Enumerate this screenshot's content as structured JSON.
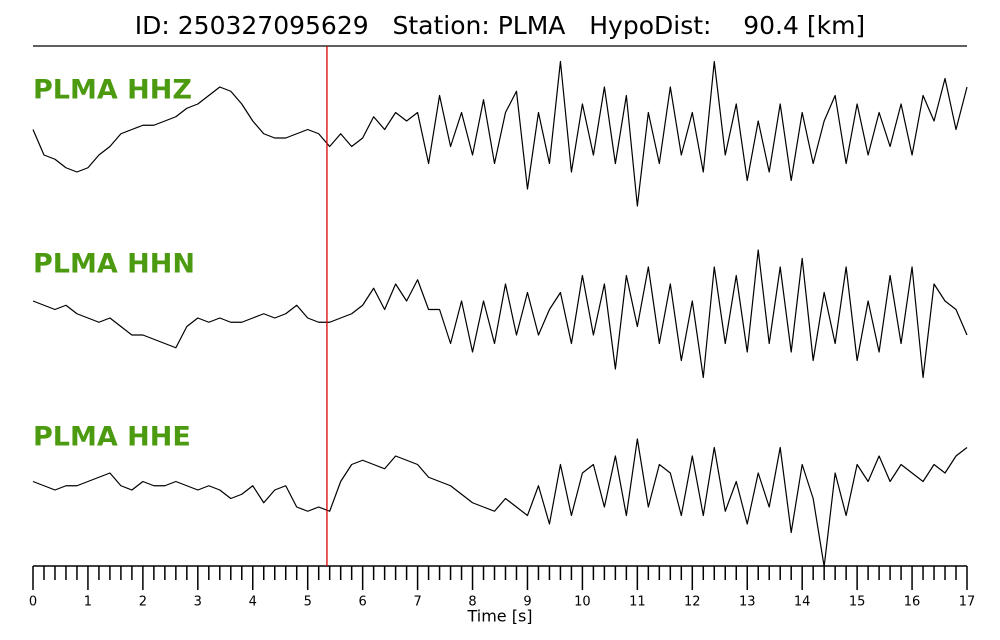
{
  "chart_data": {
    "type": "line",
    "title": "ID: 250327095629   Station: PLMA   HypoDist:    90.4 [km]",
    "xlabel": "Time [s]",
    "x": [
      0,
      0.2,
      0.4,
      0.6,
      0.8,
      1,
      1.2,
      1.4,
      1.6,
      1.8,
      2,
      2.2,
      2.4,
      2.6,
      2.8,
      3,
      3.2,
      3.4,
      3.6,
      3.8,
      4,
      4.2,
      4.4,
      4.6,
      4.8,
      5,
      5.2,
      5.4,
      5.6,
      5.8,
      6,
      6.2,
      6.4,
      6.6,
      6.8,
      7,
      7.2,
      7.4,
      7.6,
      7.8,
      8,
      8.2,
      8.4,
      8.6,
      8.8,
      9,
      9.2,
      9.4,
      9.6,
      9.8,
      10,
      10.2,
      10.4,
      10.6,
      10.8,
      11,
      11.2,
      11.4,
      11.6,
      11.8,
      12,
      12.2,
      12.4,
      12.6,
      12.8,
      13,
      13.2,
      13.4,
      13.6,
      13.8,
      14,
      14.2,
      14.4,
      14.6,
      14.8,
      15,
      15.2,
      15.4,
      15.6,
      15.8,
      16,
      16.2,
      16.4,
      16.6,
      16.8,
      17
    ],
    "series": [
      {
        "name": "PLMA HHZ",
        "color": "#000000",
        "values": [
          0.1,
          -0.2,
          -0.25,
          -0.35,
          -0.4,
          -0.35,
          -0.2,
          -0.1,
          0.05,
          0.1,
          0.15,
          0.15,
          0.2,
          0.25,
          0.35,
          0.4,
          0.5,
          0.6,
          0.55,
          0.4,
          0.2,
          0.05,
          0,
          0,
          0.05,
          0.1,
          0.05,
          -0.1,
          0.05,
          -0.1,
          0,
          0.25,
          0.1,
          0.3,
          0.2,
          0.3,
          -0.3,
          0.5,
          -0.1,
          0.3,
          -0.2,
          0.45,
          -0.3,
          0.3,
          0.55,
          -0.6,
          0.3,
          -0.3,
          0.9,
          -0.4,
          0.4,
          -0.2,
          0.6,
          -0.3,
          0.5,
          -0.8,
          0.3,
          -0.3,
          0.6,
          -0.2,
          0.3,
          -0.4,
          0.9,
          -0.2,
          0.4,
          -0.5,
          0.2,
          -0.4,
          0.4,
          -0.5,
          0.3,
          -0.3,
          0.2,
          0.5,
          -0.3,
          0.4,
          -0.2,
          0.3,
          -0.1,
          0.4,
          -0.2,
          0.5,
          0.2,
          0.7,
          0.1,
          0.6
        ]
      },
      {
        "name": "PLMA HHN",
        "color": "#000000",
        "values": [
          0.2,
          0.15,
          0.1,
          0.15,
          0.05,
          0,
          -0.05,
          0,
          -0.1,
          -0.2,
          -0.2,
          -0.25,
          -0.3,
          -0.35,
          -0.1,
          0,
          -0.05,
          0,
          -0.05,
          -0.05,
          0,
          0.05,
          0,
          0.05,
          0.15,
          0,
          -0.05,
          -0.05,
          0,
          0.05,
          0.15,
          0.35,
          0.1,
          0.4,
          0.2,
          0.45,
          0.1,
          0.1,
          -0.3,
          0.2,
          -0.4,
          0.2,
          -0.3,
          0.4,
          -0.2,
          0.3,
          -0.2,
          0.1,
          0.3,
          -0.3,
          0.5,
          -0.2,
          0.4,
          -0.6,
          0.5,
          -0.1,
          0.6,
          -0.3,
          0.4,
          -0.5,
          0.2,
          -0.7,
          0.6,
          -0.3,
          0.5,
          -0.4,
          0.8,
          -0.3,
          0.6,
          -0.4,
          0.7,
          -0.5,
          0.3,
          -0.3,
          0.6,
          -0.5,
          0.2,
          -0.4,
          0.5,
          -0.3,
          0.6,
          -0.7,
          0.4,
          0.2,
          0.1,
          -0.2
        ]
      },
      {
        "name": "PLMA HHE",
        "color": "#000000",
        "values": [
          0.1,
          0.05,
          0,
          0.05,
          0.05,
          0.1,
          0.15,
          0.2,
          0.05,
          0,
          0.1,
          0.05,
          0.05,
          0.1,
          0.05,
          0,
          0.05,
          0,
          -0.1,
          -0.05,
          0.05,
          -0.15,
          0,
          0.05,
          -0.2,
          -0.25,
          -0.2,
          -0.25,
          0.1,
          0.3,
          0.35,
          0.3,
          0.25,
          0.4,
          0.35,
          0.3,
          0.15,
          0.1,
          0.05,
          -0.05,
          -0.15,
          -0.2,
          -0.25,
          -0.1,
          -0.2,
          -0.3,
          0.05,
          -0.4,
          0.3,
          -0.3,
          0.2,
          0.3,
          -0.2,
          0.4,
          -0.3,
          0.6,
          -0.2,
          0.3,
          0.2,
          -0.3,
          0.4,
          -0.3,
          0.5,
          -0.25,
          0.1,
          -0.4,
          0.2,
          -0.2,
          0.5,
          -0.5,
          0.3,
          -0.1,
          -0.9,
          0.2,
          -0.3,
          0.3,
          0.1,
          0.4,
          0.1,
          0.3,
          0.2,
          0.1,
          0.3,
          0.2,
          0.4,
          0.5
        ]
      }
    ],
    "label_color": "#4c9a10",
    "ylim": [
      -1,
      1
    ],
    "xlim": [
      0,
      17
    ],
    "xticks": [
      0,
      1,
      2,
      3,
      4,
      5,
      6,
      7,
      8,
      9,
      10,
      11,
      12,
      13,
      14,
      15,
      16,
      17
    ],
    "xminorticks": [
      0.2,
      0.4,
      0.6,
      0.8,
      1.2,
      1.4,
      1.6,
      1.8,
      2.2,
      2.4,
      2.6,
      2.8,
      3.2,
      3.4,
      3.6,
      3.8,
      4.2,
      4.4,
      4.6,
      4.8,
      5.2,
      5.4,
      5.6,
      5.8,
      6.2,
      6.4,
      6.6,
      6.8,
      7.2,
      7.4,
      7.6,
      7.8,
      8.2,
      8.4,
      8.6,
      8.8,
      9.2,
      9.4,
      9.6,
      9.8,
      10.2,
      10.4,
      10.6,
      10.8,
      11.2,
      11.4,
      11.6,
      11.8,
      12.2,
      12.4,
      12.6,
      12.8,
      13.2,
      13.4,
      13.6,
      13.8,
      14.2,
      14.4,
      14.6,
      14.8,
      15.2,
      15.4,
      15.6,
      15.8,
      16.2,
      16.4,
      16.6,
      16.8
    ],
    "pick_time": 5.35,
    "pick_color": "#e00000"
  }
}
